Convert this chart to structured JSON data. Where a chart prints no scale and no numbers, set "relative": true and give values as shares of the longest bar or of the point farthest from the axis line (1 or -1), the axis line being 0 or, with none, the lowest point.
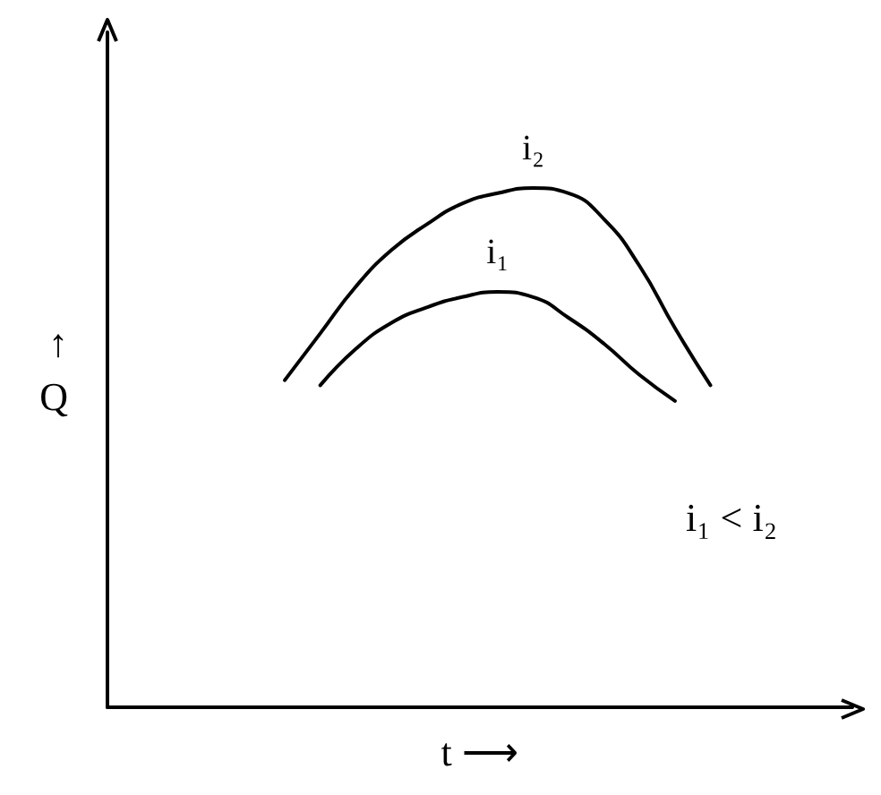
{
  "chart_data": {
    "type": "line",
    "relative": true,
    "xlabel": "t ⟶",
    "ylabel": "↑\nQ",
    "annotations": [
      "i₁ < i₂"
    ],
    "categories": [
      null,
      null,
      null,
      null,
      null,
      null,
      null,
      null,
      null,
      null,
      null,
      null,
      null,
      null,
      null,
      null,
      null,
      null,
      null,
      null,
      null,
      null
    ],
    "marker": "none",
    "line_style": "solid",
    "grid": false,
    "legend": false,
    "series": [
      {
        "name": "i₂",
        "color": "#000000",
        "values": [
          null,
          null,
          null,
          null,
          null,
          0.63,
          0.72,
          0.81,
          0.88,
          0.93,
          0.97,
          0.99,
          1,
          0.99,
          0.94,
          0.85,
          0.73,
          0.62,
          null,
          null,
          null,
          null
        ]
      },
      {
        "name": "i₁",
        "color": "#000000",
        "values": [
          null,
          null,
          null,
          null,
          null,
          null,
          0.62,
          0.69,
          0.74,
          0.77,
          0.79,
          0.8,
          0.79,
          0.75,
          0.7,
          0.64,
          0.59,
          null,
          null,
          null,
          null,
          null
        ]
      }
    ]
  }
}
